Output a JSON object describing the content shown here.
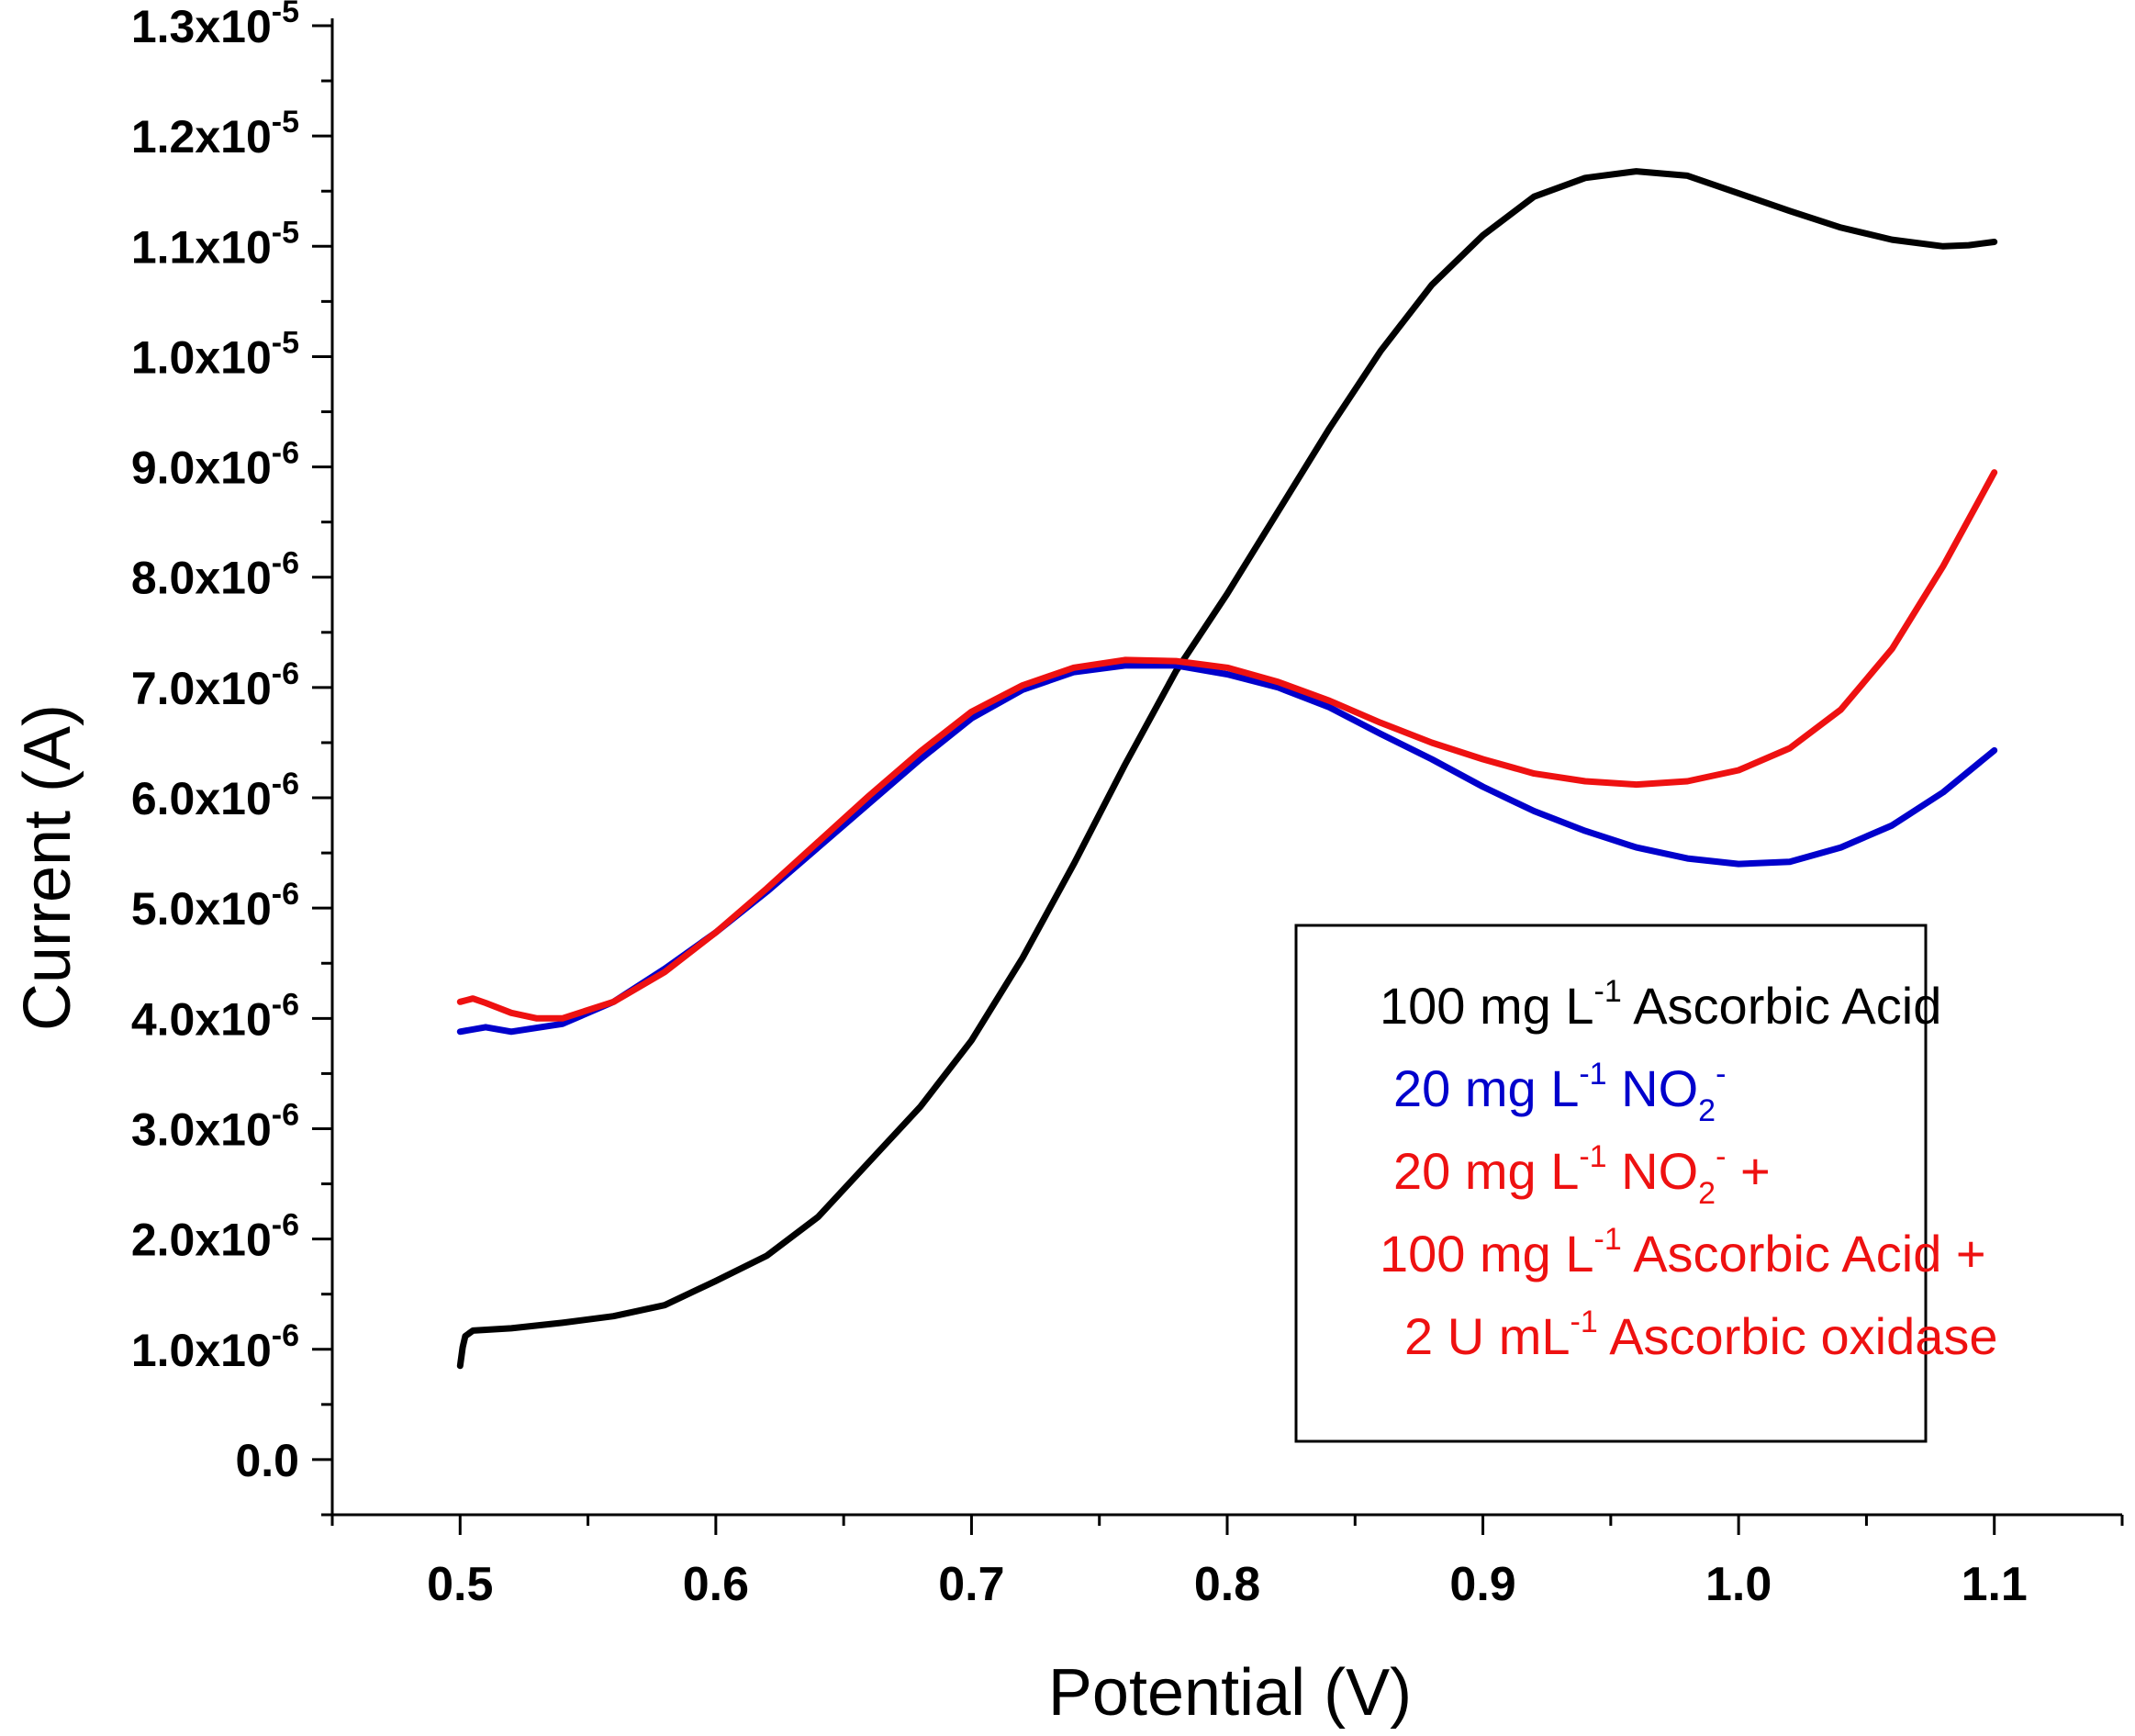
{
  "chart_data": {
    "type": "line",
    "xlabel": "Potential (V)",
    "ylabel": "Current (A)",
    "xlim": [
      0.45,
      1.15
    ],
    "ylim": [
      -5e-07,
      1.3e-05
    ],
    "x_ticks": [
      {
        "value": 0.5,
        "label": "0.5"
      },
      {
        "value": 0.6,
        "label": "0.6"
      },
      {
        "value": 0.7,
        "label": "0.7"
      },
      {
        "value": 0.8,
        "label": "0.8"
      },
      {
        "value": 0.9,
        "label": "0.9"
      },
      {
        "value": 1.0,
        "label": "1.0"
      },
      {
        "value": 1.1,
        "label": "1.1"
      }
    ],
    "y_ticks": [
      {
        "value": 0,
        "mant": "0.0",
        "exp": ""
      },
      {
        "value": 1e-06,
        "mant": "1.0x10",
        "exp": "-6"
      },
      {
        "value": 2e-06,
        "mant": "2.0x10",
        "exp": "-6"
      },
      {
        "value": 3e-06,
        "mant": "3.0x10",
        "exp": "-6"
      },
      {
        "value": 4e-06,
        "mant": "4.0x10",
        "exp": "-6"
      },
      {
        "value": 5e-06,
        "mant": "5.0x10",
        "exp": "-6"
      },
      {
        "value": 6e-06,
        "mant": "6.0x10",
        "exp": "-6"
      },
      {
        "value": 7e-06,
        "mant": "7.0x10",
        "exp": "-6"
      },
      {
        "value": 8e-06,
        "mant": "8.0x10",
        "exp": "-6"
      },
      {
        "value": 9e-06,
        "mant": "9.0x10",
        "exp": "-6"
      },
      {
        "value": 1e-05,
        "mant": "1.0x10",
        "exp": "-5"
      },
      {
        "value": 1.1e-05,
        "mant": "1.1x10",
        "exp": "-5"
      },
      {
        "value": 1.2e-05,
        "mant": "1.2x10",
        "exp": "-5"
      },
      {
        "value": 1.3e-05,
        "mant": "1.3x10",
        "exp": "-5"
      }
    ],
    "series": [
      {
        "name": "100 mg L-1 Ascorbic Acid",
        "color": "#000000",
        "points": [
          [
            0.5,
            8.5e-07
          ],
          [
            0.501,
            1.02e-06
          ],
          [
            0.502,
            1.12e-06
          ],
          [
            0.505,
            1.17e-06
          ],
          [
            0.52,
            1.19e-06
          ],
          [
            0.54,
            1.24e-06
          ],
          [
            0.56,
            1.3e-06
          ],
          [
            0.58,
            1.4e-06
          ],
          [
            0.6,
            1.62e-06
          ],
          [
            0.62,
            1.85e-06
          ],
          [
            0.64,
            2.2e-06
          ],
          [
            0.66,
            2.7e-06
          ],
          [
            0.68,
            3.2e-06
          ],
          [
            0.7,
            3.8e-06
          ],
          [
            0.72,
            4.55e-06
          ],
          [
            0.74,
            5.4e-06
          ],
          [
            0.76,
            6.3e-06
          ],
          [
            0.78,
            7.15e-06
          ],
          [
            0.8,
            7.85e-06
          ],
          [
            0.82,
            8.6e-06
          ],
          [
            0.84,
            9.35e-06
          ],
          [
            0.86,
            1.005e-05
          ],
          [
            0.88,
            1.065e-05
          ],
          [
            0.9,
            1.11e-05
          ],
          [
            0.92,
            1.145e-05
          ],
          [
            0.94,
            1.162e-05
          ],
          [
            0.96,
            1.168e-05
          ],
          [
            0.98,
            1.164e-05
          ],
          [
            1.0,
            1.148e-05
          ],
          [
            1.02,
            1.132e-05
          ],
          [
            1.04,
            1.117e-05
          ],
          [
            1.06,
            1.106e-05
          ],
          [
            1.08,
            1.1e-05
          ],
          [
            1.09,
            1.101e-05
          ],
          [
            1.1,
            1.104e-05
          ]
        ]
      },
      {
        "name": "20 mg L-1 NO2-",
        "color": "#0000cc",
        "points": [
          [
            0.5,
            3.88e-06
          ],
          [
            0.51,
            3.92e-06
          ],
          [
            0.52,
            3.88e-06
          ],
          [
            0.54,
            3.95e-06
          ],
          [
            0.56,
            4.15e-06
          ],
          [
            0.58,
            4.45e-06
          ],
          [
            0.6,
            4.78e-06
          ],
          [
            0.62,
            5.15e-06
          ],
          [
            0.64,
            5.55e-06
          ],
          [
            0.66,
            5.95e-06
          ],
          [
            0.68,
            6.35e-06
          ],
          [
            0.7,
            6.72e-06
          ],
          [
            0.72,
            6.98e-06
          ],
          [
            0.74,
            7.14e-06
          ],
          [
            0.76,
            7.2e-06
          ],
          [
            0.78,
            7.2e-06
          ],
          [
            0.8,
            7.12e-06
          ],
          [
            0.82,
            7e-06
          ],
          [
            0.84,
            6.82e-06
          ],
          [
            0.86,
            6.58e-06
          ],
          [
            0.88,
            6.35e-06
          ],
          [
            0.9,
            6.1e-06
          ],
          [
            0.92,
            5.88e-06
          ],
          [
            0.94,
            5.7e-06
          ],
          [
            0.96,
            5.55e-06
          ],
          [
            0.98,
            5.45e-06
          ],
          [
            1.0,
            5.4e-06
          ],
          [
            1.02,
            5.42e-06
          ],
          [
            1.04,
            5.55e-06
          ],
          [
            1.06,
            5.75e-06
          ],
          [
            1.08,
            6.05e-06
          ],
          [
            1.1,
            6.43e-06
          ]
        ]
      },
      {
        "name": "20 mg L-1 NO2- + 100 mg L-1 Ascorbic Acid + 2 U mL-1 Ascorbic oxidase",
        "color": "#ee1111",
        "points": [
          [
            0.5,
            4.15e-06
          ],
          [
            0.505,
            4.18e-06
          ],
          [
            0.51,
            4.14e-06
          ],
          [
            0.52,
            4.05e-06
          ],
          [
            0.53,
            4e-06
          ],
          [
            0.54,
            4e-06
          ],
          [
            0.56,
            4.15e-06
          ],
          [
            0.58,
            4.42e-06
          ],
          [
            0.6,
            4.78e-06
          ],
          [
            0.62,
            5.18e-06
          ],
          [
            0.64,
            5.6e-06
          ],
          [
            0.66,
            6.02e-06
          ],
          [
            0.68,
            6.42e-06
          ],
          [
            0.7,
            6.78e-06
          ],
          [
            0.72,
            7.02e-06
          ],
          [
            0.74,
            7.18e-06
          ],
          [
            0.76,
            7.25e-06
          ],
          [
            0.78,
            7.24e-06
          ],
          [
            0.8,
            7.18e-06
          ],
          [
            0.82,
            7.05e-06
          ],
          [
            0.84,
            6.88e-06
          ],
          [
            0.86,
            6.68e-06
          ],
          [
            0.88,
            6.5e-06
          ],
          [
            0.9,
            6.35e-06
          ],
          [
            0.92,
            6.22e-06
          ],
          [
            0.94,
            6.15e-06
          ],
          [
            0.96,
            6.12e-06
          ],
          [
            0.98,
            6.15e-06
          ],
          [
            1.0,
            6.25e-06
          ],
          [
            1.02,
            6.45e-06
          ],
          [
            1.04,
            6.8e-06
          ],
          [
            1.06,
            7.35e-06
          ],
          [
            1.08,
            8.1e-06
          ],
          [
            1.1,
            8.95e-06
          ]
        ]
      }
    ],
    "legend": {
      "position": "bottom-right",
      "lines": [
        {
          "color": "#000000",
          "parts": [
            {
              "t": "100 mg L"
            },
            {
              "t": "-1",
              "sup": true
            },
            {
              "t": " Ascorbic Acid"
            }
          ]
        },
        {
          "color": "#0000cc",
          "parts": [
            {
              "t": "20 mg L"
            },
            {
              "t": "-1",
              "sup": true
            },
            {
              "t": " NO"
            },
            {
              "t": "2",
              "sub": true
            },
            {
              "t": "-",
              "sup": true
            }
          ]
        },
        {
          "color": "#ee1111",
          "parts": [
            {
              "t": "20 mg L"
            },
            {
              "t": "-1",
              "sup": true
            },
            {
              "t": " NO"
            },
            {
              "t": "2",
              "sub": true
            },
            {
              "t": "-",
              "sup": true
            },
            {
              "t": " +"
            }
          ]
        },
        {
          "color": "#ee1111",
          "parts": [
            {
              "t": "100 mg L"
            },
            {
              "t": "-1",
              "sup": true
            },
            {
              "t": " Ascorbic Acid +"
            }
          ]
        },
        {
          "color": "#ee1111",
          "parts": [
            {
              "t": "2 U mL"
            },
            {
              "t": "-1",
              "sup": true
            },
            {
              "t": " Ascorbic oxidase"
            }
          ]
        }
      ]
    }
  }
}
